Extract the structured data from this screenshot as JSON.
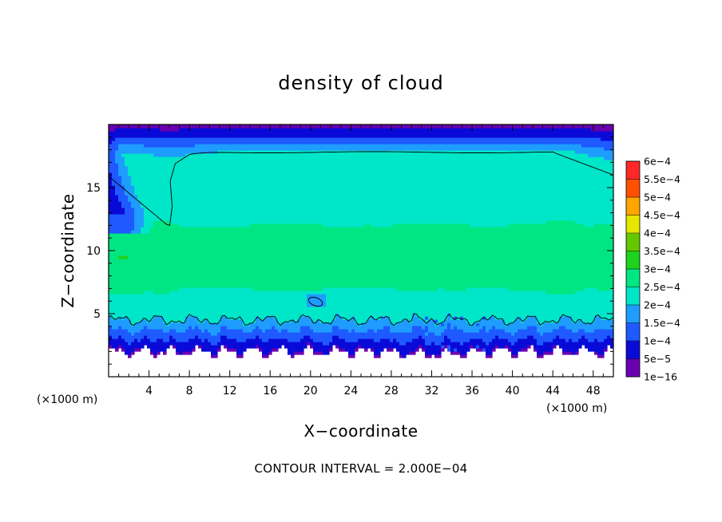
{
  "chart_data": {
    "type": "heatmap",
    "title": "density of cloud",
    "xlabel": "X−coordinate",
    "ylabel": "Z−coordinate",
    "x_unit": "(×1000 m)",
    "z_unit": "(×1000 m)",
    "xlim": [
      0,
      50
    ],
    "ylim": [
      0,
      20
    ],
    "x_ticks": [
      4,
      8,
      12,
      16,
      20,
      24,
      28,
      32,
      36,
      40,
      44,
      48
    ],
    "y_ticks": [
      5,
      10,
      15
    ],
    "contour_interval_text": "CONTOUR INTERVAL = 2.000E−04",
    "contour_levels": [
      0.0002
    ],
    "colorbar": {
      "labels": [
        "1e−16",
        "5e−5",
        "1e−4",
        "1.5e−4",
        "2e−4",
        "2.5e−4",
        "3e−4",
        "3.5e−4",
        "4e−4",
        "4.5e−4",
        "5e−4",
        "5.5e−4",
        "6e−4"
      ],
      "values": [
        1e-16,
        5e-05,
        0.0001,
        0.00015,
        0.0002,
        0.00025,
        0.0003,
        0.00035,
        0.0004,
        0.00045,
        0.0005,
        0.00055,
        0.0006
      ],
      "colors": [
        "#6a00b0",
        "#0a0ad8",
        "#1e5aff",
        "#1e9cff",
        "#00e6c8",
        "#00e682",
        "#1ed21e",
        "#64c800",
        "#e6e600",
        "#ffa500",
        "#ff5000",
        "#ff2828",
        "#ff8c8c"
      ]
    },
    "cloud_base_z": 2.0,
    "cloud_top_z": 19.8,
    "lower_contour_z": 4.5,
    "upper_contour_z": 17.8
  }
}
